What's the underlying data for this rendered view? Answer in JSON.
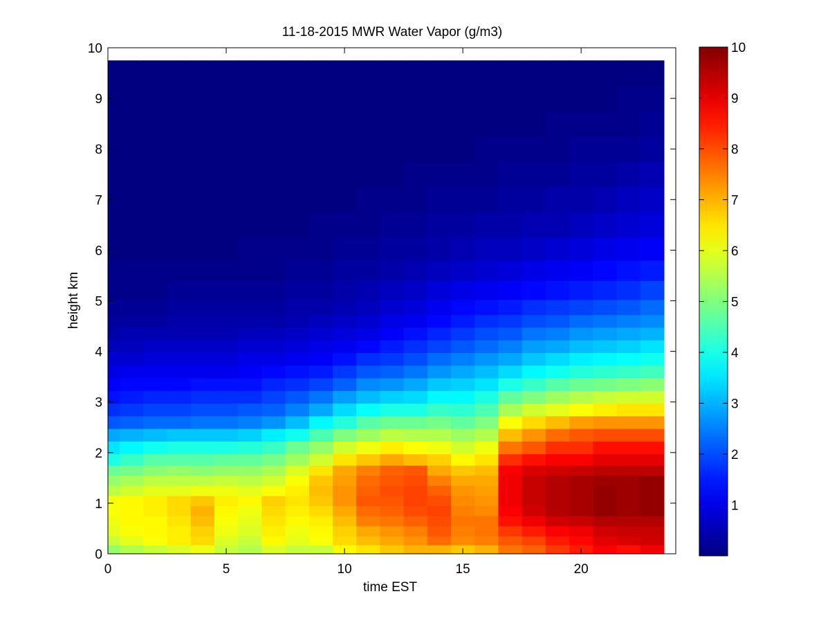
{
  "chart_data": {
    "type": "heatmap",
    "title": "11-18-2015 MWR Water Vapor (g/m3)",
    "xlabel": "time EST",
    "ylabel": "height km",
    "xlim": [
      0,
      24
    ],
    "ylim": [
      0,
      10
    ],
    "xticks": [
      0,
      5,
      10,
      15,
      20
    ],
    "yticks": [
      0,
      1,
      2,
      3,
      4,
      5,
      6,
      7,
      8,
      9,
      10
    ],
    "colorbar": {
      "ticks": [
        1,
        2,
        3,
        4,
        5,
        6,
        7,
        8,
        9,
        10
      ],
      "range": [
        0,
        10
      ],
      "colormap": "jet"
    },
    "x": [
      0,
      1,
      2,
      3,
      4,
      5,
      6,
      7,
      8,
      9,
      10,
      11,
      12,
      13,
      14,
      15,
      16,
      17,
      18,
      19,
      20,
      21,
      22,
      23
    ],
    "y": [
      0.1,
      0.25,
      0.45,
      0.65,
      0.85,
      1.05,
      1.25,
      1.45,
      1.65,
      1.85,
      2.1,
      2.35,
      2.6,
      2.85,
      3.1,
      3.35,
      3.6,
      3.85,
      4.1,
      4.35,
      4.6,
      4.85,
      5.2,
      5.6,
      6.0,
      6.5,
      7.0,
      7.5,
      8.0,
      8.5,
      9.0,
      9.5
    ],
    "z": [
      [
        5.2,
        5.5,
        5.7,
        5.9,
        6.1,
        5.7,
        5.5,
        5.9,
        5.7,
        5.7,
        6.3,
        6.5,
        6.8,
        7.0,
        7.0,
        6.8,
        7.0,
        7.6,
        7.8,
        8.2,
        8.5,
        8.8,
        8.6,
        8.9
      ],
      [
        5.7,
        6.0,
        6.2,
        6.4,
        6.6,
        5.9,
        5.7,
        6.3,
        6.0,
        6.2,
        6.6,
        6.9,
        7.1,
        7.3,
        7.7,
        7.4,
        7.5,
        7.9,
        8.1,
        8.5,
        8.7,
        9.0,
        9.1,
        9.2
      ],
      [
        6.0,
        6.2,
        6.3,
        6.4,
        6.7,
        6.1,
        5.9,
        6.4,
        6.1,
        6.3,
        6.7,
        7.1,
        7.3,
        7.5,
        7.9,
        7.5,
        7.6,
        8.2,
        8.5,
        8.8,
        8.9,
        9.2,
        9.3,
        9.3
      ],
      [
        6.1,
        6.3,
        6.3,
        6.5,
        6.9,
        6.2,
        6.0,
        6.5,
        6.3,
        6.4,
        6.9,
        7.5,
        7.6,
        7.8,
        8.0,
        7.6,
        7.6,
        8.6,
        8.9,
        9.2,
        9.3,
        9.5,
        9.5,
        9.5
      ],
      [
        6.2,
        6.3,
        6.4,
        6.6,
        7.0,
        6.3,
        6.1,
        6.6,
        6.4,
        6.6,
        7.1,
        7.7,
        7.8,
        8.0,
        8.1,
        7.5,
        7.4,
        8.8,
        9.2,
        9.5,
        9.6,
        9.8,
        9.7,
        9.8
      ],
      [
        6.2,
        6.3,
        6.4,
        6.6,
        6.8,
        6.4,
        6.3,
        6.7,
        6.5,
        6.8,
        7.3,
        7.9,
        7.9,
        8.1,
        8.0,
        7.4,
        7.3,
        8.9,
        9.3,
        9.5,
        9.6,
        9.8,
        9.7,
        9.8
      ],
      [
        5.6,
        5.8,
        6.0,
        6.0,
        6.1,
        6.1,
        6.0,
        6.2,
        6.4,
        6.9,
        7.3,
        7.8,
        8.0,
        8.1,
        7.8,
        7.3,
        7.2,
        8.9,
        9.3,
        9.5,
        9.6,
        9.8,
        9.7,
        9.8
      ],
      [
        5.2,
        5.4,
        5.6,
        5.6,
        5.6,
        5.7,
        5.6,
        5.8,
        6.2,
        6.8,
        7.2,
        7.7,
        7.9,
        8.0,
        7.5,
        7.1,
        7.1,
        8.9,
        9.3,
        9.5,
        9.6,
        9.7,
        9.7,
        9.8
      ],
      [
        4.8,
        4.9,
        5.1,
        5.2,
        5.1,
        5.2,
        5.2,
        5.4,
        5.9,
        6.5,
        7.1,
        7.5,
        7.8,
        7.9,
        7.1,
        6.8,
        6.9,
        8.8,
        9.1,
        9.2,
        9.3,
        9.4,
        9.4,
        9.4
      ],
      [
        4.0,
        4.3,
        4.6,
        4.6,
        4.6,
        4.7,
        4.7,
        4.9,
        5.3,
        5.8,
        6.5,
        6.8,
        7.1,
        6.9,
        6.7,
        6.3,
        6.5,
        8.3,
        8.6,
        8.8,
        8.8,
        9.0,
        9.0,
        9.0
      ],
      [
        3.5,
        3.7,
        3.9,
        4.0,
        4.0,
        4.0,
        4.1,
        4.3,
        4.8,
        5.2,
        5.8,
        6.1,
        6.4,
        6.2,
        6.1,
        5.8,
        6.1,
        7.6,
        7.9,
        8.3,
        8.3,
        8.6,
        8.6,
        8.6
      ],
      [
        2.9,
        3.0,
        3.1,
        3.2,
        3.2,
        3.2,
        3.3,
        3.6,
        3.9,
        4.5,
        5.0,
        5.3,
        5.6,
        5.5,
        5.5,
        5.3,
        5.5,
        6.9,
        7.3,
        7.7,
        7.9,
        8.0,
        8.0,
        8.0
      ],
      [
        2.1,
        2.2,
        2.3,
        2.3,
        2.4,
        2.4,
        2.5,
        2.7,
        3.1,
        3.7,
        4.1,
        4.6,
        4.8,
        4.8,
        4.9,
        4.7,
        5.0,
        6.2,
        6.6,
        6.9,
        7.2,
        7.3,
        7.3,
        7.3
      ],
      [
        1.7,
        1.8,
        1.9,
        1.9,
        2.0,
        2.0,
        2.1,
        2.2,
        2.5,
        2.9,
        3.4,
        3.8,
        4.0,
        4.0,
        4.3,
        4.2,
        4.5,
        5.4,
        5.8,
        6.0,
        6.2,
        6.4,
        6.5,
        6.5
      ],
      [
        1.4,
        1.5,
        1.6,
        1.6,
        1.7,
        1.7,
        1.7,
        1.9,
        2.1,
        2.4,
        2.8,
        3.1,
        3.3,
        3.4,
        3.7,
        3.7,
        4.0,
        4.7,
        5.0,
        5.3,
        5.5,
        5.7,
        5.8,
        5.8
      ],
      [
        1.2,
        1.3,
        1.3,
        1.3,
        1.4,
        1.4,
        1.4,
        1.6,
        1.7,
        1.9,
        2.2,
        2.6,
        2.7,
        2.9,
        3.2,
        3.3,
        3.5,
        4.0,
        4.3,
        4.6,
        4.8,
        4.9,
        5.0,
        5.1
      ],
      [
        1.0,
        1.1,
        1.1,
        1.1,
        1.1,
        1.1,
        1.2,
        1.3,
        1.4,
        1.5,
        1.8,
        2.1,
        2.2,
        2.4,
        2.7,
        2.9,
        3.1,
        3.4,
        3.7,
        3.9,
        4.1,
        4.2,
        4.3,
        4.4
      ],
      [
        0.8,
        0.8,
        0.9,
        0.9,
        0.9,
        0.9,
        1.0,
        1.0,
        1.1,
        1.2,
        1.4,
        1.7,
        1.8,
        2.0,
        2.3,
        2.5,
        2.7,
        2.9,
        3.2,
        3.4,
        3.6,
        3.7,
        3.8,
        3.9
      ],
      [
        0.6,
        0.6,
        0.7,
        0.7,
        0.7,
        0.7,
        0.8,
        0.8,
        0.9,
        1.0,
        1.1,
        1.3,
        1.5,
        1.7,
        1.9,
        2.1,
        2.3,
        2.5,
        2.8,
        2.9,
        3.1,
        3.2,
        3.3,
        3.5
      ],
      [
        0.4,
        0.5,
        0.5,
        0.5,
        0.5,
        0.5,
        0.6,
        0.6,
        0.7,
        0.8,
        0.9,
        1.0,
        1.2,
        1.4,
        1.6,
        1.8,
        2.0,
        2.1,
        2.4,
        2.5,
        2.7,
        2.8,
        2.9,
        3.0
      ],
      [
        0.3,
        0.3,
        0.3,
        0.4,
        0.4,
        0.4,
        0.4,
        0.4,
        0.5,
        0.6,
        0.7,
        0.8,
        1.0,
        1.1,
        1.3,
        1.5,
        1.7,
        1.8,
        2.0,
        2.1,
        2.3,
        2.4,
        2.5,
        2.6
      ],
      [
        0.2,
        0.2,
        0.2,
        0.3,
        0.3,
        0.3,
        0.3,
        0.3,
        0.4,
        0.4,
        0.5,
        0.6,
        0.8,
        0.9,
        1.1,
        1.3,
        1.4,
        1.5,
        1.7,
        1.8,
        1.9,
        2.0,
        2.1,
        2.3
      ],
      [
        0.1,
        0.1,
        0.1,
        0.2,
        0.2,
        0.2,
        0.2,
        0.2,
        0.3,
        0.3,
        0.4,
        0.5,
        0.6,
        0.7,
        0.9,
        1.0,
        1.1,
        1.2,
        1.3,
        1.4,
        1.5,
        1.6,
        1.7,
        1.9
      ],
      [
        0.1,
        0.1,
        0.1,
        0.1,
        0.1,
        0.1,
        0.1,
        0.1,
        0.2,
        0.2,
        0.3,
        0.3,
        0.4,
        0.5,
        0.6,
        0.7,
        0.8,
        0.9,
        1.0,
        1.1,
        1.2,
        1.3,
        1.4,
        1.5
      ],
      [
        0.0,
        0.0,
        0.0,
        0.0,
        0.0,
        0.0,
        0.1,
        0.1,
        0.1,
        0.1,
        0.2,
        0.2,
        0.3,
        0.3,
        0.4,
        0.5,
        0.6,
        0.6,
        0.7,
        0.8,
        0.9,
        1.0,
        1.1,
        1.2
      ],
      [
        0.0,
        0.0,
        0.0,
        0.0,
        0.0,
        0.0,
        0.0,
        0.0,
        0.0,
        0.1,
        0.1,
        0.1,
        0.2,
        0.2,
        0.3,
        0.3,
        0.4,
        0.4,
        0.5,
        0.5,
        0.6,
        0.7,
        0.8,
        0.9
      ],
      [
        0.0,
        0.0,
        0.0,
        0.0,
        0.0,
        0.0,
        0.0,
        0.0,
        0.0,
        0.0,
        0.0,
        0.1,
        0.1,
        0.1,
        0.2,
        0.2,
        0.2,
        0.3,
        0.3,
        0.4,
        0.4,
        0.5,
        0.6,
        0.7
      ],
      [
        0.0,
        0.0,
        0.0,
        0.0,
        0.0,
        0.0,
        0.0,
        0.0,
        0.0,
        0.0,
        0.0,
        0.0,
        0.0,
        0.1,
        0.1,
        0.1,
        0.1,
        0.2,
        0.2,
        0.2,
        0.3,
        0.3,
        0.4,
        0.5
      ],
      [
        0.0,
        0.0,
        0.0,
        0.0,
        0.0,
        0.0,
        0.0,
        0.0,
        0.0,
        0.0,
        0.0,
        0.0,
        0.0,
        0.0,
        0.0,
        0.0,
        0.1,
        0.1,
        0.1,
        0.1,
        0.2,
        0.2,
        0.2,
        0.3
      ],
      [
        0.0,
        0.0,
        0.0,
        0.0,
        0.0,
        0.0,
        0.0,
        0.0,
        0.0,
        0.0,
        0.0,
        0.0,
        0.0,
        0.0,
        0.0,
        0.0,
        0.0,
        0.0,
        0.0,
        0.1,
        0.1,
        0.1,
        0.1,
        0.2
      ],
      [
        0.0,
        0.0,
        0.0,
        0.0,
        0.0,
        0.0,
        0.0,
        0.0,
        0.0,
        0.0,
        0.0,
        0.0,
        0.0,
        0.0,
        0.0,
        0.0,
        0.0,
        0.0,
        0.0,
        0.0,
        0.0,
        0.0,
        0.1,
        0.1
      ],
      [
        0.0,
        0.0,
        0.0,
        0.0,
        0.0,
        0.0,
        0.0,
        0.0,
        0.0,
        0.0,
        0.0,
        0.0,
        0.0,
        0.0,
        0.0,
        0.0,
        0.0,
        0.0,
        0.0,
        0.0,
        0.0,
        0.0,
        0.0,
        0.0
      ]
    ]
  }
}
